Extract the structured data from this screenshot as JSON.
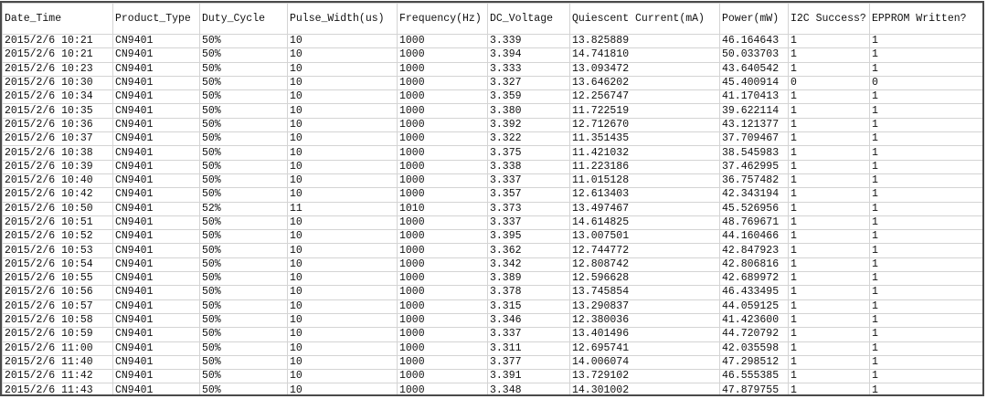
{
  "columns": [
    "Date_Time",
    "Product_Type",
    "Duty_Cycle",
    "Pulse_Width(us)",
    "Frequency(Hz)",
    "DC_Voltage",
    "Quiescent Current(mA)",
    "Power(mW)",
    "I2C Success?",
    "EPPROM Written?"
  ],
  "rows": [
    [
      "2015/2/6 10:21",
      "CN9401",
      "50%",
      "10",
      "1000",
      "3.339",
      "13.825889",
      "46.164643",
      "1",
      "1"
    ],
    [
      "2015/2/6 10:21",
      "CN9401",
      "50%",
      "10",
      "1000",
      "3.394",
      "14.741810",
      "50.033703",
      "1",
      "1"
    ],
    [
      "2015/2/6 10:23",
      "CN9401",
      "50%",
      "10",
      "1000",
      "3.333",
      "13.093472",
      "43.640542",
      "1",
      "1"
    ],
    [
      "2015/2/6 10:30",
      "CN9401",
      "50%",
      "10",
      "1000",
      "3.327",
      "13.646202",
      "45.400914",
      "0",
      "0"
    ],
    [
      "2015/2/6 10:34",
      "CN9401",
      "50%",
      "10",
      "1000",
      "3.359",
      "12.256747",
      "41.170413",
      "1",
      "1"
    ],
    [
      "2015/2/6 10:35",
      "CN9401",
      "50%",
      "10",
      "1000",
      "3.380",
      "11.722519",
      "39.622114",
      "1",
      "1"
    ],
    [
      "2015/2/6 10:36",
      "CN9401",
      "50%",
      "10",
      "1000",
      "3.392",
      "12.712670",
      "43.121377",
      "1",
      "1"
    ],
    [
      "2015/2/6 10:37",
      "CN9401",
      "50%",
      "10",
      "1000",
      "3.322",
      "11.351435",
      "37.709467",
      "1",
      "1"
    ],
    [
      "2015/2/6 10:38",
      "CN9401",
      "50%",
      "10",
      "1000",
      "3.375",
      "11.421032",
      "38.545983",
      "1",
      "1"
    ],
    [
      "2015/2/6 10:39",
      "CN9401",
      "50%",
      "10",
      "1000",
      "3.338",
      "11.223186",
      "37.462995",
      "1",
      "1"
    ],
    [
      "2015/2/6 10:40",
      "CN9401",
      "50%",
      "10",
      "1000",
      "3.337",
      "11.015128",
      "36.757482",
      "1",
      "1"
    ],
    [
      "2015/2/6 10:42",
      "CN9401",
      "50%",
      "10",
      "1000",
      "3.357",
      "12.613403",
      "42.343194",
      "1",
      "1"
    ],
    [
      "2015/2/6 10:50",
      "CN9401",
      "52%",
      "11",
      "1010",
      "3.373",
      "13.497467",
      "45.526956",
      "1",
      "1"
    ],
    [
      "2015/2/6 10:51",
      "CN9401",
      "50%",
      "10",
      "1000",
      "3.337",
      "14.614825",
      "48.769671",
      "1",
      "1"
    ],
    [
      "2015/2/6 10:52",
      "CN9401",
      "50%",
      "10",
      "1000",
      "3.395",
      "13.007501",
      "44.160466",
      "1",
      "1"
    ],
    [
      "2015/2/6 10:53",
      "CN9401",
      "50%",
      "10",
      "1000",
      "3.362",
      "12.744772",
      "42.847923",
      "1",
      "1"
    ],
    [
      "2015/2/6 10:54",
      "CN9401",
      "50%",
      "10",
      "1000",
      "3.342",
      "12.808742",
      "42.806816",
      "1",
      "1"
    ],
    [
      "2015/2/6 10:55",
      "CN9401",
      "50%",
      "10",
      "1000",
      "3.389",
      "12.596628",
      "42.689972",
      "1",
      "1"
    ],
    [
      "2015/2/6 10:56",
      "CN9401",
      "50%",
      "10",
      "1000",
      "3.378",
      "13.745854",
      "46.433495",
      "1",
      "1"
    ],
    [
      "2015/2/6 10:57",
      "CN9401",
      "50%",
      "10",
      "1000",
      "3.315",
      "13.290837",
      "44.059125",
      "1",
      "1"
    ],
    [
      "2015/2/6 10:58",
      "CN9401",
      "50%",
      "10",
      "1000",
      "3.346",
      "12.380036",
      "41.423600",
      "1",
      "1"
    ],
    [
      "2015/2/6 10:59",
      "CN9401",
      "50%",
      "10",
      "1000",
      "3.337",
      "13.401496",
      "44.720792",
      "1",
      "1"
    ],
    [
      "2015/2/6 11:00",
      "CN9401",
      "50%",
      "10",
      "1000",
      "3.311",
      "12.695741",
      "42.035598",
      "1",
      "1"
    ],
    [
      "2015/2/6 11:40",
      "CN9401",
      "50%",
      "10",
      "1000",
      "3.377",
      "14.006074",
      "47.298512",
      "1",
      "1"
    ],
    [
      "2015/2/6 11:42",
      "CN9401",
      "50%",
      "10",
      "1000",
      "3.391",
      "13.729102",
      "46.555385",
      "1",
      "1"
    ],
    [
      "2015/2/6 11:43",
      "CN9401",
      "50%",
      "10",
      "1000",
      "3.348",
      "14.301002",
      "47.879755",
      "1",
      "1"
    ]
  ]
}
